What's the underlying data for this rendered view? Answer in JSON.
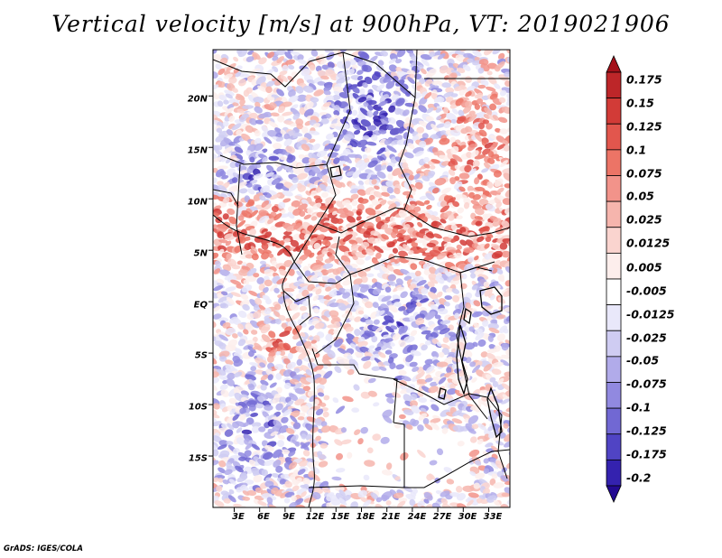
{
  "title": "Vertical velocity [m/s] at 900hPa, VT: 2019021906",
  "credit": "GrADS: IGES/COLA",
  "map": {
    "lat_labels": [
      "20N",
      "15N",
      "10N",
      "5N",
      "EQ",
      "5S",
      "10S",
      "15S"
    ],
    "lat_values": [
      20,
      15,
      10,
      5,
      0,
      -5,
      -10,
      -15
    ],
    "lon_labels": [
      "3E",
      "6E",
      "9E",
      "12E",
      "15E",
      "18E",
      "21E",
      "24E",
      "27E",
      "30E",
      "33E"
    ],
    "lon_values": [
      3,
      6,
      9,
      12,
      15,
      18,
      21,
      24,
      27,
      30,
      33
    ],
    "lat_range": [
      -20,
      24.5
    ],
    "lon_range": [
      0.5,
      35.5
    ],
    "field": "vertical velocity",
    "level": "900hPa",
    "units": "m/s"
  },
  "colorbar": {
    "labels": [
      "0.175",
      "0.15",
      "0.125",
      "0.1",
      "0.075",
      "0.05",
      "0.025",
      "0.0125",
      "0.005",
      "-0.005",
      "-0.0125",
      "-0.025",
      "-0.05",
      "-0.075",
      "-0.1",
      "-0.125",
      "-0.175",
      "-0.2"
    ],
    "colors": [
      "#a4111a",
      "#bd2629",
      "#d23b37",
      "#e2564d",
      "#ec7466",
      "#f2938a",
      "#f6b5ad",
      "#fad4cf",
      "#fdeeec",
      "#ffffff",
      "#e9e8fa",
      "#cfccf2",
      "#b1abea",
      "#9189e0",
      "#7168d3",
      "#5044c4",
      "#3422af",
      "#230a92"
    ]
  }
}
